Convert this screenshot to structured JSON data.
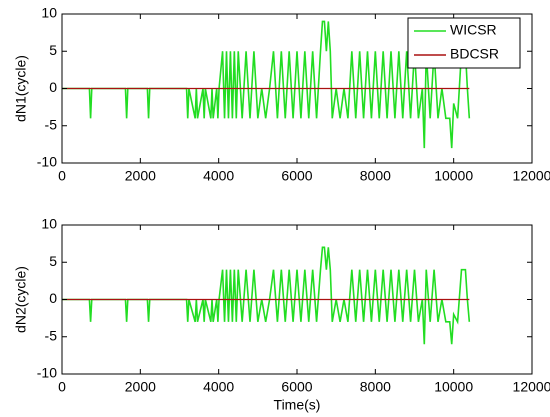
{
  "chart_data": [
    {
      "type": "line",
      "ylabel": "dN1(cycle)",
      "xlim": [
        0,
        12000
      ],
      "xticks": [
        0,
        2000,
        4000,
        6000,
        8000,
        10000,
        12000
      ],
      "ylim": [
        -10,
        10
      ],
      "yticks": [
        -10,
        -5,
        0,
        5,
        10
      ],
      "legend": "upper right",
      "series": [
        {
          "name": "WICSR",
          "color": "#22dd22",
          "x": [
            0,
            700,
            730,
            760,
            1620,
            1650,
            1680,
            2180,
            2210,
            2240,
            3180,
            3210,
            3240,
            3400,
            3430,
            3460,
            3600,
            3630,
            3660,
            3800,
            3830,
            3860,
            3950,
            3980,
            4010,
            4100,
            4150,
            4200,
            4250,
            4300,
            4350,
            4400,
            4450,
            4500,
            4600,
            4700,
            4800,
            4900,
            5000,
            5100,
            5200,
            5300,
            5400,
            5500,
            5600,
            5700,
            5800,
            5900,
            6000,
            6100,
            6200,
            6300,
            6400,
            6500,
            6600,
            6650,
            6700,
            6750,
            6800,
            6850,
            6900,
            7000,
            7100,
            7200,
            7300,
            7400,
            7500,
            7600,
            7700,
            7800,
            7900,
            8000,
            8100,
            8200,
            8300,
            8400,
            8500,
            8600,
            8700,
            8800,
            8900,
            9000,
            9100,
            9200,
            9250,
            9300,
            9400,
            9500,
            9600,
            9700,
            9800,
            9900,
            9950,
            10000,
            10100,
            10200,
            10300,
            10350,
            10400
          ],
          "values": [
            0,
            0,
            -4,
            0,
            0,
            -4,
            0,
            0,
            -4,
            0,
            0,
            -4,
            0,
            -4,
            0,
            -4,
            0,
            -4,
            0,
            -4,
            0,
            -4,
            0,
            -4,
            0,
            5,
            -4,
            5,
            -4,
            5,
            -4,
            5,
            -4,
            5,
            -4,
            5,
            -4,
            5,
            -4,
            0,
            -4,
            0,
            5,
            -4,
            5,
            -4,
            5,
            -4,
            5,
            -4,
            5,
            -4,
            5,
            -4,
            5,
            9,
            9,
            5,
            9,
            5,
            -4,
            0,
            -4,
            0,
            -4,
            5,
            -4,
            5,
            -4,
            5,
            -4,
            5,
            -4,
            5,
            -4,
            5,
            -4,
            5,
            -4,
            5,
            -4,
            5,
            -4,
            0,
            -8,
            5,
            -4,
            5,
            -4,
            0,
            -4,
            -4,
            -8,
            -2,
            -4,
            5,
            5,
            0,
            -4
          ]
        },
        {
          "name": "BDCSR",
          "color": "#aa1111",
          "x": [
            0,
            10400
          ],
          "values": [
            0,
            0
          ]
        }
      ]
    },
    {
      "type": "line",
      "ylabel": "dN2(cycle)",
      "xlabel": "Time(s)",
      "xlim": [
        0,
        12000
      ],
      "xticks": [
        0,
        2000,
        4000,
        6000,
        8000,
        10000,
        12000
      ],
      "ylim": [
        -10,
        10
      ],
      "yticks": [
        -10,
        -5,
        0,
        5,
        10
      ],
      "series": [
        {
          "color": "#22dd22",
          "x": [
            0,
            700,
            730,
            760,
            1620,
            1650,
            1680,
            2180,
            2210,
            2240,
            3180,
            3210,
            3240,
            3400,
            3430,
            3460,
            3600,
            3630,
            3660,
            3800,
            3830,
            3860,
            3950,
            3980,
            4010,
            4100,
            4150,
            4200,
            4250,
            4300,
            4350,
            4400,
            4450,
            4500,
            4600,
            4700,
            4800,
            4900,
            5000,
            5100,
            5200,
            5300,
            5400,
            5500,
            5600,
            5700,
            5800,
            5900,
            6000,
            6100,
            6200,
            6300,
            6400,
            6500,
            6600,
            6650,
            6700,
            6750,
            6800,
            6850,
            6900,
            7000,
            7100,
            7200,
            7300,
            7400,
            7500,
            7600,
            7700,
            7800,
            7900,
            8000,
            8100,
            8200,
            8300,
            8400,
            8500,
            8600,
            8700,
            8800,
            8900,
            9000,
            9100,
            9200,
            9250,
            9300,
            9400,
            9500,
            9600,
            9700,
            9800,
            9900,
            9950,
            10000,
            10100,
            10200,
            10300,
            10350,
            10400
          ],
          "values": [
            0,
            0,
            -3,
            0,
            0,
            -3,
            0,
            0,
            -3,
            0,
            0,
            -3,
            0,
            -3,
            0,
            -3,
            0,
            -3,
            0,
            -3,
            0,
            -3,
            0,
            -3,
            0,
            4,
            -3,
            4,
            -3,
            4,
            -3,
            4,
            -3,
            4,
            -3,
            4,
            -3,
            4,
            -3,
            0,
            -3,
            0,
            4,
            -3,
            4,
            -3,
            4,
            -3,
            4,
            -3,
            4,
            -3,
            4,
            -3,
            4,
            7,
            7,
            4,
            7,
            4,
            -3,
            0,
            -3,
            0,
            -3,
            4,
            -3,
            4,
            -3,
            4,
            -3,
            4,
            -3,
            4,
            -3,
            4,
            -3,
            4,
            -3,
            4,
            -3,
            4,
            -3,
            0,
            -6,
            4,
            -3,
            4,
            -3,
            0,
            -3,
            -3,
            -6,
            -2,
            -3,
            4,
            4,
            0,
            -3
          ]
        },
        {
          "color": "#aa1111",
          "x": [
            0,
            10400
          ],
          "values": [
            0,
            0
          ]
        }
      ]
    }
  ]
}
